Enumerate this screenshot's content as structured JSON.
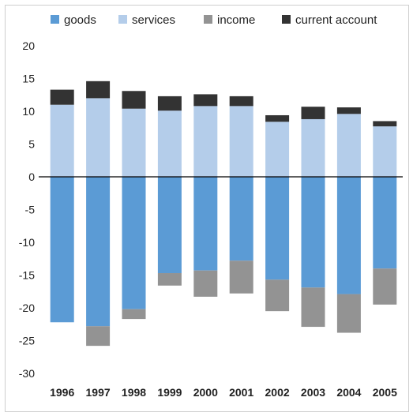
{
  "chart_data": {
    "type": "bar",
    "stacked": true,
    "categories": [
      "1996",
      "1997",
      "1998",
      "1999",
      "2000",
      "2001",
      "2002",
      "2003",
      "2004",
      "2005"
    ],
    "series": [
      {
        "name": "goods",
        "color": "#5b9bd5",
        "values": [
          -22.2,
          -22.8,
          -20.2,
          -14.7,
          -14.3,
          -12.8,
          -15.7,
          -16.9,
          -17.9,
          -14.0
        ]
      },
      {
        "name": "services",
        "color": "#b4cdea",
        "values": [
          11.0,
          12.0,
          10.4,
          10.1,
          10.8,
          10.8,
          8.4,
          8.8,
          9.6,
          7.7
        ]
      },
      {
        "name": "income",
        "color": "#939393",
        "values": [
          0,
          -3.0,
          -1.5,
          -1.9,
          -4.0,
          -5.0,
          -4.8,
          -6.0,
          -5.9,
          -5.5
        ]
      },
      {
        "name": "current account",
        "color": "#333333",
        "values": [
          2.3,
          2.6,
          2.7,
          2.2,
          1.8,
          1.5,
          1.0,
          1.9,
          1.0,
          0.8
        ]
      }
    ],
    "yticks": [
      "20",
      "15",
      "10",
      "5",
      "0",
      "-5",
      "-10",
      "-15",
      "-20",
      "-25",
      "-30"
    ],
    "ylim": [
      -30,
      20
    ],
    "legend_position": "top",
    "grid": false
  }
}
